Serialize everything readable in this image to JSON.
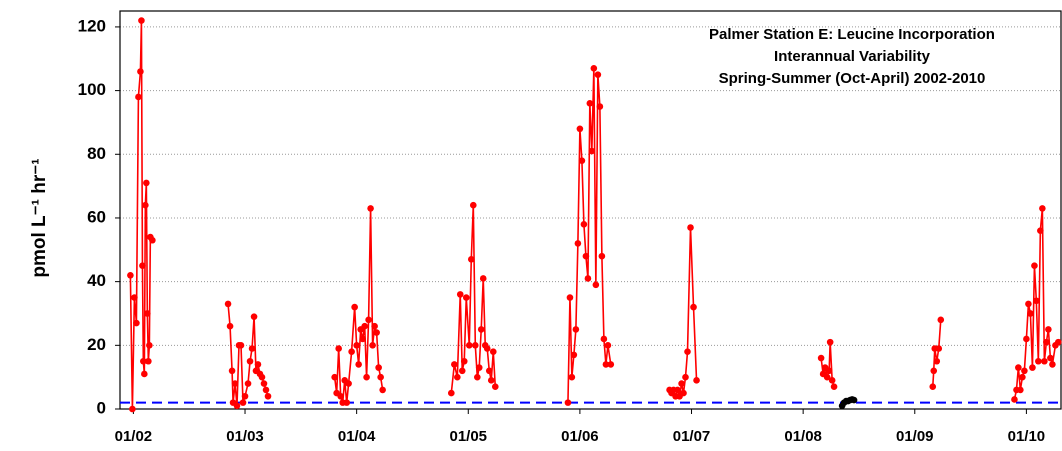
{
  "chart_data": {
    "type": "line",
    "title": [
      "Palmer Station E: Leucine Incorporation",
      "Interannual Variability",
      "Spring-Summer (Oct-April) 2002-2010"
    ],
    "ylabel": "pmol L⁻¹ hr⁻¹",
    "xlim": [
      2001.88,
      2010.31
    ],
    "ylim": [
      0,
      125
    ],
    "yticks": [
      0,
      20,
      40,
      60,
      80,
      100,
      120
    ],
    "xticks": [
      {
        "value": 2002,
        "label": "01/02"
      },
      {
        "value": 2003,
        "label": "01/03"
      },
      {
        "value": 2004,
        "label": "01/04"
      },
      {
        "value": 2005,
        "label": "01/05"
      },
      {
        "value": 2006,
        "label": "01/06"
      },
      {
        "value": 2007,
        "label": "01/07"
      },
      {
        "value": 2008,
        "label": "01/08"
      },
      {
        "value": 2009,
        "label": "01/09"
      },
      {
        "value": 2010,
        "label": "01/10"
      }
    ],
    "grid": true,
    "reference_line": {
      "value": 2,
      "color": "#0000ff"
    },
    "series": [
      {
        "color": "#ff0000",
        "x": [
          2001.973,
          2001.991,
          2002.009,
          2002.027,
          2002.045,
          2002.063,
          2002.072,
          2002.081,
          2002.089,
          2002.098,
          2002.107,
          2002.116,
          2002.125,
          2002.134,
          2002.143,
          2002.152,
          2002.17,
          null,
          2002.848,
          2002.866,
          2002.884,
          2002.893,
          2002.911,
          2002.928,
          2002.946,
          2002.964,
          2002.982,
          2003.0,
          2003.027,
          2003.045,
          2003.063,
          2003.081,
          2003.098,
          2003.116,
          2003.134,
          2003.152,
          2003.17,
          2003.188,
          2003.206,
          null,
          2003.803,
          2003.821,
          2003.839,
          2003.857,
          2003.875,
          2003.893,
          2003.911,
          2003.928,
          2003.955,
          2003.982,
          2004.0,
          2004.018,
          2004.036,
          2004.054,
          2004.072,
          2004.089,
          2004.107,
          2004.125,
          2004.143,
          2004.161,
          2004.179,
          2004.197,
          2004.215,
          2004.233,
          null,
          2004.848,
          2004.875,
          2004.902,
          2004.928,
          2004.946,
          2004.964,
          2004.982,
          2005.009,
          2005.027,
          2005.045,
          2005.063,
          2005.081,
          2005.098,
          2005.116,
          2005.134,
          2005.152,
          2005.17,
          2005.188,
          2005.206,
          2005.224,
          2005.242,
          null,
          2005.893,
          2005.911,
          2005.928,
          2005.946,
          2005.964,
          2005.982,
          2006.0,
          2006.018,
          2006.036,
          2006.054,
          2006.072,
          2006.089,
          2006.107,
          2006.125,
          2006.143,
          2006.161,
          2006.179,
          2006.197,
          2006.215,
          2006.233,
          2006.251,
          2006.277,
          null,
          2006.803,
          2006.821,
          2006.839,
          2006.857,
          2006.875,
          2006.893,
          2006.911,
          2006.928,
          2006.946,
          2006.964,
          2006.991,
          2007.018,
          2007.045,
          null,
          2008.161,
          2008.179,
          2008.197,
          2008.215,
          2008.233,
          2008.242,
          2008.26,
          2008.277,
          null,
          2009.161,
          2009.17,
          2009.179,
          2009.197,
          2009.215,
          2009.233,
          null,
          2009.893,
          2009.911,
          2009.928,
          2009.946,
          2009.964,
          2009.982,
          2010.0,
          2010.018,
          2010.036,
          2010.054,
          2010.072,
          2010.089,
          2010.107,
          2010.125,
          2010.143,
          2010.161,
          2010.179,
          2010.197,
          2010.215,
          2010.233,
          2010.26,
          2010.286
        ],
        "values": [
          42,
          0,
          35,
          27,
          98,
          106,
          122,
          45,
          15,
          11,
          64,
          71,
          30,
          15,
          20,
          54,
          53,
          null,
          33,
          26,
          12,
          2,
          8,
          1,
          20,
          20,
          2,
          4,
          8,
          15,
          19,
          29,
          12,
          14,
          11,
          10,
          8,
          6,
          4,
          null,
          10,
          5,
          19,
          4,
          2,
          9,
          2,
          8,
          18,
          32,
          20,
          14,
          25,
          22,
          26,
          10,
          28,
          63,
          20,
          26,
          24,
          13,
          10,
          6,
          null,
          5,
          14,
          10,
          36,
          12,
          15,
          35,
          20,
          47,
          64,
          20,
          10,
          13,
          25,
          41,
          20,
          19,
          12,
          9,
          18,
          7,
          null,
          2,
          35,
          10,
          17,
          25,
          52,
          88,
          78,
          58,
          48,
          41,
          96,
          81,
          107,
          39,
          105,
          95,
          48,
          22,
          14,
          20,
          14,
          null,
          6,
          5,
          6,
          4,
          6,
          4,
          8,
          5,
          10,
          18,
          57,
          32,
          9,
          null,
          16,
          11,
          13,
          10,
          12,
          21,
          9,
          7,
          null,
          7,
          12,
          19,
          15,
          19,
          28,
          null,
          3,
          6,
          13,
          6,
          10,
          12,
          22,
          33,
          30,
          13,
          45,
          34,
          15,
          56,
          63,
          15,
          21,
          25,
          16,
          14,
          20,
          21
        ]
      },
      {
        "color": "#000000",
        "x": [
          2008.349,
          2008.367,
          2008.385,
          2008.403,
          2008.421,
          2008.439,
          2008.456
        ],
        "values": [
          1,
          2,
          2.5,
          2.5,
          2.8,
          3,
          2.8
        ]
      }
    ]
  }
}
